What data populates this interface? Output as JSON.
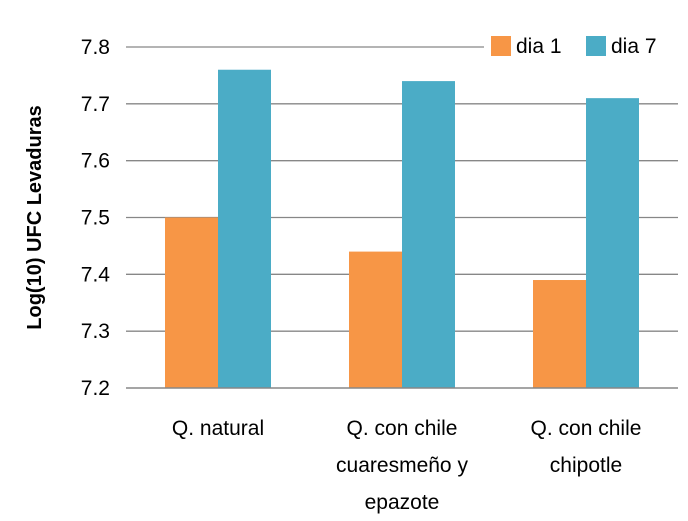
{
  "chart_data": {
    "type": "bar",
    "title": "",
    "xlabel": "",
    "ylabel": "Log(10) UFC Levaduras",
    "categories": [
      [
        "Q. natural"
      ],
      [
        "Q. con chile",
        "cuaresmeño y",
        "epazote"
      ],
      [
        "Q. con chile",
        "chipotle"
      ]
    ],
    "series": [
      {
        "name": "dia 1",
        "color": "#F79646",
        "values": [
          7.5,
          7.44,
          7.39
        ]
      },
      {
        "name": "dia 7",
        "color": "#4BACC6",
        "values": [
          7.76,
          7.74,
          7.71
        ]
      }
    ],
    "ylim": [
      7.2,
      7.8
    ],
    "yticks": [
      "7.2",
      "7.3",
      "7.4",
      "7.5",
      "7.6",
      "7.7",
      "7.8"
    ],
    "grid": true,
    "legend": "top-right"
  }
}
